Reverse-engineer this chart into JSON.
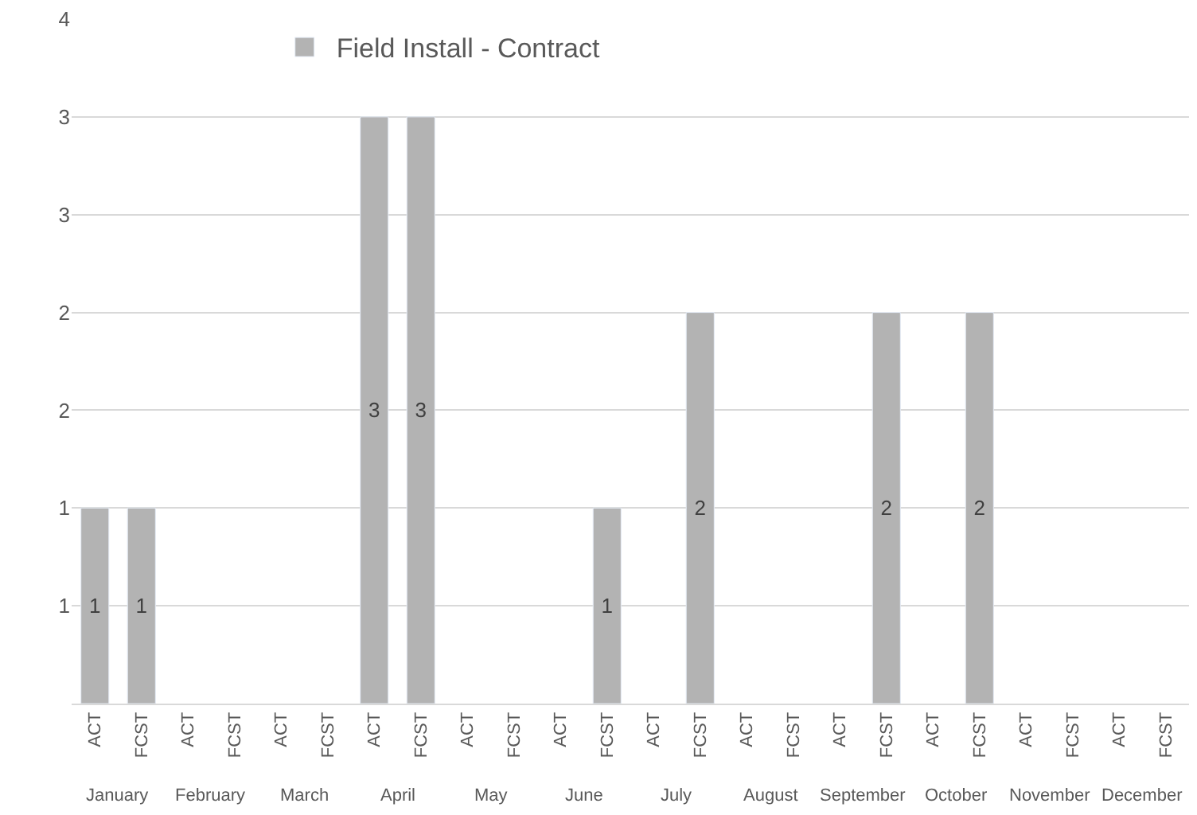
{
  "chart_data": {
    "type": "bar",
    "categories": [
      "ACT",
      "FCST",
      "ACT",
      "FCST",
      "ACT",
      "FCST",
      "ACT",
      "FCST",
      "ACT",
      "FCST",
      "ACT",
      "FCST",
      "ACT",
      "FCST",
      "ACT",
      "FCST",
      "ACT",
      "FCST",
      "ACT",
      "FCST",
      "ACT",
      "FCST",
      "ACT",
      "FCST"
    ],
    "series": [
      {
        "name": "Field Install - Contract",
        "color": "#b3b3b3",
        "values": [
          1,
          1,
          null,
          null,
          null,
          null,
          3,
          3,
          null,
          null,
          null,
          1,
          null,
          2,
          null,
          null,
          null,
          2,
          null,
          2,
          null,
          null,
          null,
          null
        ]
      }
    ],
    "annotations": [
      "January",
      "February",
      "March",
      "April",
      "May",
      "June",
      "July",
      "August",
      "September",
      "October",
      "November",
      "December"
    ],
    "ylim": [
      0,
      3.5
    ],
    "yticks": [
      {
        "value": 0.5,
        "label": "1"
      },
      {
        "value": 1,
        "label": "1"
      },
      {
        "value": 1.5,
        "label": "2"
      },
      {
        "value": 2,
        "label": "2"
      },
      {
        "value": 2.5,
        "label": "3"
      },
      {
        "value": 3,
        "label": "3"
      },
      {
        "value": 3.5,
        "label": "4"
      }
    ],
    "grid": "y",
    "legend": "top left",
    "data_labels": true
  }
}
